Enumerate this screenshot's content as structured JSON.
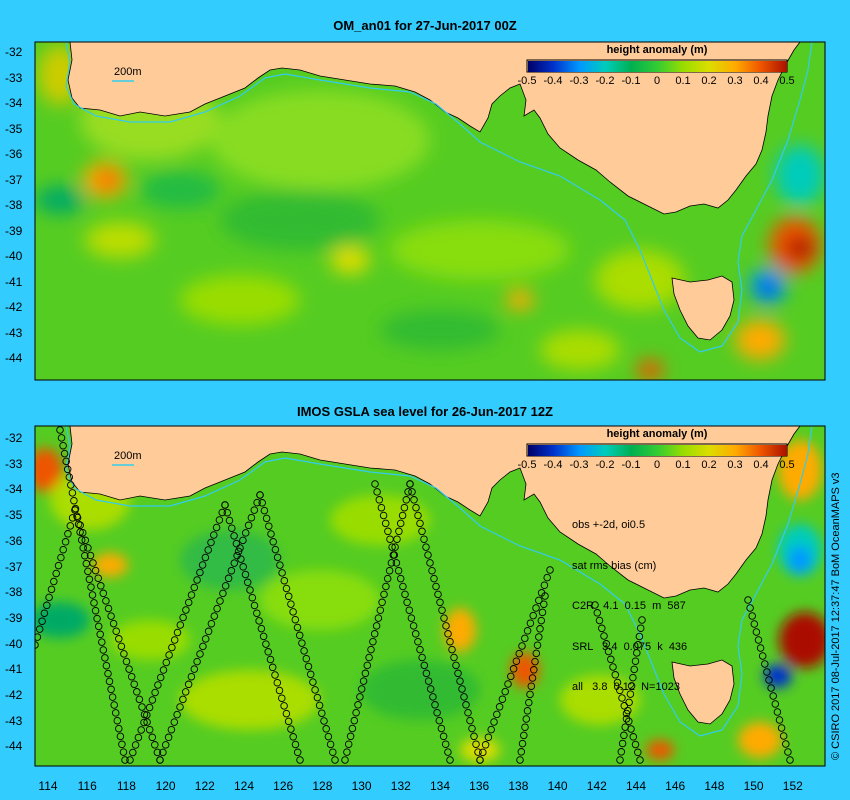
{
  "panel_top": {
    "title": "OM_an01 for 27-Jun-2017 00Z",
    "isobath_label": "200m",
    "y_ticks": [
      "-32",
      "-33",
      "-34",
      "-35",
      "-36",
      "-37",
      "-38",
      "-39",
      "-40",
      "-41",
      "-42",
      "-43",
      "-44"
    ]
  },
  "panel_bottom": {
    "title": "IMOS GSLA sea level  for 26-Jun-2017 12Z",
    "isobath_label": "200m",
    "y_ticks": [
      "-32",
      "-33",
      "-34",
      "-35",
      "-36",
      "-37",
      "-38",
      "-39",
      "-40",
      "-41",
      "-42",
      "-43",
      "-44"
    ],
    "x_ticks": [
      "114",
      "116",
      "118",
      "120",
      "122",
      "124",
      "126",
      "128",
      "130",
      "132",
      "134",
      "136",
      "138",
      "140",
      "142",
      "144",
      "146",
      "148",
      "150",
      "152"
    ],
    "stats": {
      "line1": "obs +-2d, oi0.5",
      "line2": "sat rms bias (cm)",
      "line3": "C2R   4.1  0.15  m  587",
      "line4": "SRL   3.4  0.075  k  436",
      "line5": "all   3.8  0.12  N=1023"
    }
  },
  "colorbar": {
    "title": "height anomaly  (m)",
    "ticks": [
      "-0.5",
      "-0.4",
      "-0.3",
      "-0.2",
      "-0.1",
      "0",
      "0.1",
      "0.2",
      "0.3",
      "0.4",
      "0.5"
    ],
    "colors": [
      "#000066",
      "#0033cc",
      "#0099ff",
      "#00ccbb",
      "#00b050",
      "#33cc33",
      "#99dd00",
      "#dddd00",
      "#ffaa00",
      "#ee5500",
      "#aa1100"
    ]
  },
  "credit": "© CSIRO 2017  08-Jul-2017 12:37:47 BoM OceanMAPS v3",
  "colors": {
    "background": "#33ccff",
    "land": "#ffcc99",
    "ocean_base": "#55cc22",
    "isobath": "#33ccee"
  }
}
